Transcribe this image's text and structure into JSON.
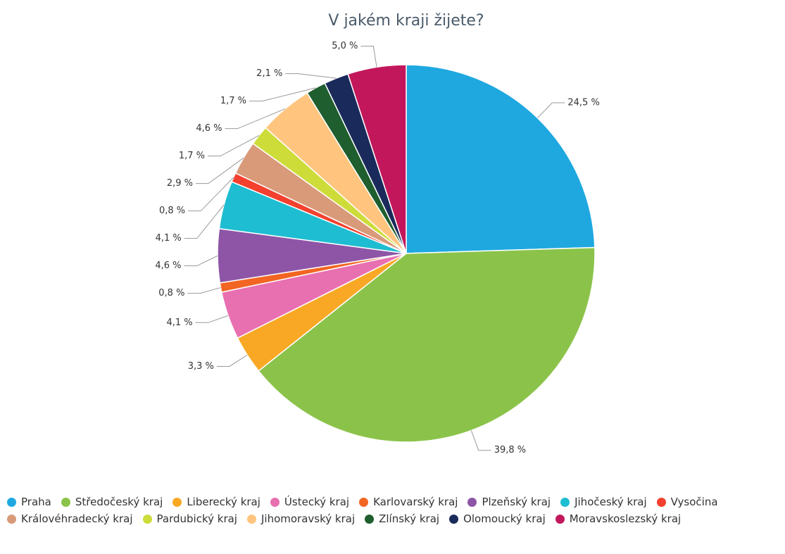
{
  "chart_data": {
    "type": "pie",
    "title": "V jakém kraji žijete?",
    "categories": [
      "Praha",
      "Středočeský kraj",
      "Liberecký kraj",
      "Ústecký kraj",
      "Karlovarský kraj",
      "Plzeňský kraj",
      "Jihočeský kraj",
      "Vysočina",
      "Královéhradecký kraj",
      "Pardubický kraj",
      "Jihomoravský kraj",
      "Zlínský kraj",
      "Olomoucký kraj",
      "Moravskoslezský kraj"
    ],
    "values": [
      24.5,
      39.8,
      3.3,
      4.1,
      0.8,
      4.6,
      4.1,
      0.8,
      2.9,
      1.7,
      4.6,
      1.7,
      2.1,
      5.0
    ],
    "value_labels": [
      "24,5 %",
      "39,8 %",
      "3,3 %",
      "4,1 %",
      "0,8 %",
      "4,6 %",
      "4,1 %",
      "0,8 %",
      "2,9 %",
      "1,7 %",
      "4,6 %",
      "1,7 %",
      "2,1 %",
      "5,0 %"
    ],
    "colors": [
      "#1fa8e0",
      "#8bc34a",
      "#f9a825",
      "#e86fb0",
      "#f26522",
      "#8e55a7",
      "#1fbdd1",
      "#f4402e",
      "#d99a7a",
      "#cddc39",
      "#ffc57f",
      "#1f5e2e",
      "#1a2a5a",
      "#c2185b"
    ],
    "legend": "bottom"
  }
}
